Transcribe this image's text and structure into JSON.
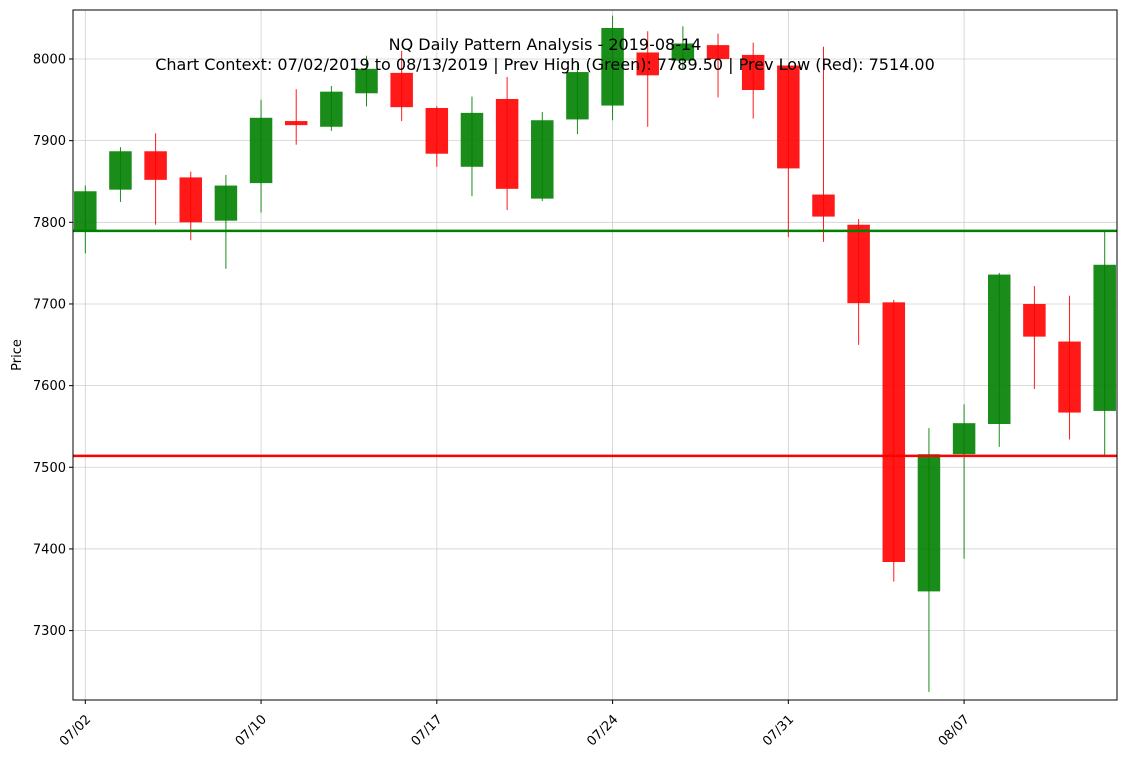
{
  "chart_data": {
    "type": "candlestick",
    "title": "NQ Daily Pattern Analysis - 2019-08-14",
    "subtitle": "Chart Context: 07/02/2019 to 08/13/2019 | Prev High (Green): 7789.50 | Prev Low (Red): 7514.00",
    "xlabel": "",
    "ylabel": "Price",
    "ylim": [
      7215,
      8060
    ],
    "xlim": [
      -0.35,
      29.35
    ],
    "grid": true,
    "y_ticks": [
      7300,
      7400,
      7500,
      7600,
      7700,
      7800,
      7900,
      8000
    ],
    "x_ticks": [
      {
        "index": 0,
        "label": "07/02"
      },
      {
        "index": 5,
        "label": "07/10"
      },
      {
        "index": 10,
        "label": "07/17"
      },
      {
        "index": 15,
        "label": "07/24"
      },
      {
        "index": 20,
        "label": "07/31"
      },
      {
        "index": 25,
        "label": "08/07"
      }
    ],
    "colors": {
      "up": "#008000",
      "down": "#ff0000"
    },
    "candles": [
      {
        "o": 7790,
        "h": 7845,
        "l": 7762,
        "c": 7838
      },
      {
        "o": 7840,
        "h": 7892,
        "l": 7825,
        "c": 7887
      },
      {
        "o": 7887,
        "h": 7909,
        "l": 7797,
        "c": 7852
      },
      {
        "o": 7855,
        "h": 7862,
        "l": 7778,
        "c": 7800
      },
      {
        "o": 7802,
        "h": 7858,
        "l": 7743,
        "c": 7845
      },
      {
        "o": 7848,
        "h": 7950,
        "l": 7812,
        "c": 7928
      },
      {
        "o": 7924,
        "h": 7963,
        "l": 7895,
        "c": 7919
      },
      {
        "o": 7917,
        "h": 7967,
        "l": 7912,
        "c": 7960
      },
      {
        "o": 7958,
        "h": 8004,
        "l": 7942,
        "c": 7988
      },
      {
        "o": 7983,
        "h": 8010,
        "l": 7924,
        "c": 7941
      },
      {
        "o": 7940,
        "h": 7942,
        "l": 7868,
        "c": 7884
      },
      {
        "o": 7868,
        "h": 7954,
        "l": 7832,
        "c": 7934
      },
      {
        "o": 7951,
        "h": 7978,
        "l": 7815,
        "c": 7841
      },
      {
        "o": 7829,
        "h": 7935,
        "l": 7826,
        "c": 7925
      },
      {
        "o": 7926,
        "h": 7995,
        "l": 7908,
        "c": 7984
      },
      {
        "o": 7943,
        "h": 8053,
        "l": 7925,
        "c": 8038
      },
      {
        "o": 8008,
        "h": 8034,
        "l": 7917,
        "c": 7980
      },
      {
        "o": 7998,
        "h": 8040,
        "l": 7988,
        "c": 8019
      },
      {
        "o": 8017,
        "h": 8031,
        "l": 7953,
        "c": 8000
      },
      {
        "o": 8005,
        "h": 8020,
        "l": 7927,
        "c": 7962
      },
      {
        "o": 7992,
        "h": 7992,
        "l": 7782,
        "c": 7866
      },
      {
        "o": 7834,
        "h": 8015,
        "l": 7776,
        "c": 7807
      },
      {
        "o": 7797,
        "h": 7804,
        "l": 7650,
        "c": 7701
      },
      {
        "o": 7702,
        "h": 7705,
        "l": 7360,
        "c": 7384
      },
      {
        "o": 7348,
        "h": 7548,
        "l": 7225,
        "c": 7516
      },
      {
        "o": 7516,
        "h": 7577,
        "l": 7388,
        "c": 7554
      },
      {
        "o": 7553,
        "h": 7738,
        "l": 7525,
        "c": 7736
      },
      {
        "o": 7700,
        "h": 7722,
        "l": 7596,
        "c": 7660
      },
      {
        "o": 7654,
        "h": 7710,
        "l": 7534,
        "c": 7567
      },
      {
        "o": 7569,
        "h": 7789,
        "l": 7514,
        "c": 7748
      }
    ],
    "reference_lines": [
      {
        "name": "Prev High (Green)",
        "value": 7789.5,
        "color": "#008000"
      },
      {
        "name": "Prev Low (Red)",
        "value": 7514.0,
        "color": "#ff0000"
      }
    ]
  }
}
